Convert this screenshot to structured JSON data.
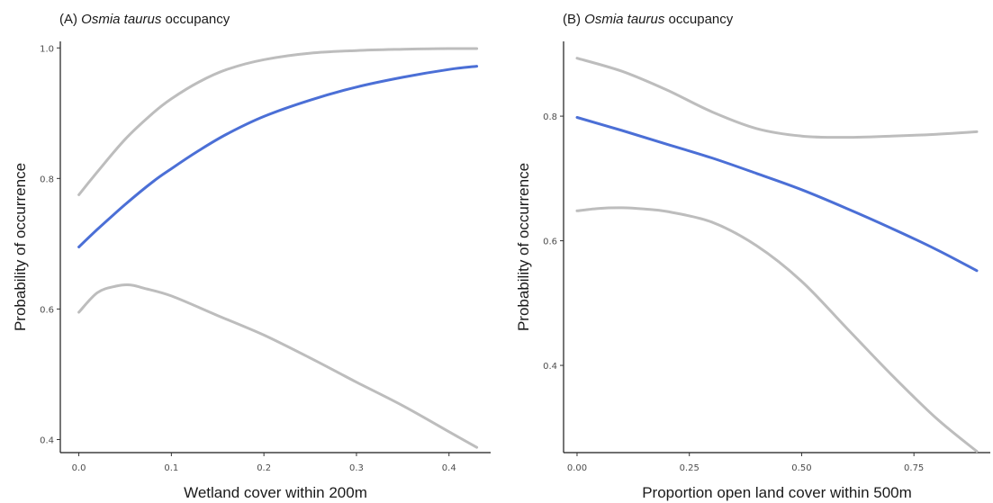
{
  "chart_data": [
    {
      "type": "line",
      "title_prefix": "(A) ",
      "title_species": "Osmia taurus",
      "title_suffix": " occupancy",
      "xlabel": "Wetland cover within 200m",
      "ylabel": "Probability of occurrence",
      "xlim": [
        -0.02,
        0.445
      ],
      "ylim": [
        0.38,
        1.01
      ],
      "xticks": [
        0.0,
        0.1,
        0.2,
        0.3,
        0.4
      ],
      "xtick_labels": [
        "0.0",
        "0.1",
        "0.2",
        "0.3",
        "0.4"
      ],
      "yticks": [
        0.4,
        0.6,
        0.8,
        1.0
      ],
      "ytick_labels": [
        "0.4",
        "0.6",
        "0.8",
        "1.0"
      ],
      "grid": false,
      "series": [
        {
          "role": "upper",
          "color": "#bdbdbd",
          "x": [
            0.0,
            0.02,
            0.05,
            0.08,
            0.1,
            0.13,
            0.16,
            0.2,
            0.25,
            0.3,
            0.35,
            0.4,
            0.43
          ],
          "y": [
            0.775,
            0.81,
            0.86,
            0.9,
            0.922,
            0.948,
            0.967,
            0.982,
            0.992,
            0.996,
            0.998,
            0.999,
            0.999
          ]
        },
        {
          "role": "fit",
          "color": "#4b6fd6",
          "x": [
            0.0,
            0.02,
            0.05,
            0.08,
            0.1,
            0.13,
            0.16,
            0.2,
            0.25,
            0.3,
            0.35,
            0.4,
            0.43
          ],
          "y": [
            0.695,
            0.722,
            0.76,
            0.795,
            0.815,
            0.843,
            0.868,
            0.895,
            0.92,
            0.94,
            0.955,
            0.967,
            0.972
          ]
        },
        {
          "role": "lower",
          "color": "#bdbdbd",
          "x": [
            0.0,
            0.02,
            0.04,
            0.055,
            0.07,
            0.1,
            0.15,
            0.2,
            0.25,
            0.3,
            0.35,
            0.4,
            0.43
          ],
          "y": [
            0.595,
            0.625,
            0.635,
            0.637,
            0.632,
            0.62,
            0.59,
            0.56,
            0.525,
            0.488,
            0.452,
            0.412,
            0.388
          ]
        }
      ]
    },
    {
      "type": "line",
      "title_prefix": "(B) ",
      "title_species": "Osmia taurus",
      "title_suffix": " occupancy",
      "xlabel": "Proportion open land cover within 500m",
      "ylabel": "Probability of occurrence",
      "xlim": [
        -0.03,
        0.92
      ],
      "ylim": [
        0.26,
        0.92
      ],
      "xticks": [
        0.0,
        0.25,
        0.5,
        0.75
      ],
      "xtick_labels": [
        "0.00",
        "0.25",
        "0.50",
        "0.75"
      ],
      "yticks": [
        0.4,
        0.6,
        0.8
      ],
      "ytick_labels": [
        "0.4",
        "0.6",
        "0.8"
      ],
      "grid": false,
      "series": [
        {
          "role": "upper",
          "color": "#bdbdbd",
          "x": [
            0.0,
            0.1,
            0.2,
            0.3,
            0.4,
            0.5,
            0.6,
            0.7,
            0.8,
            0.89
          ],
          "y": [
            0.893,
            0.872,
            0.842,
            0.807,
            0.78,
            0.768,
            0.766,
            0.768,
            0.771,
            0.775
          ]
        },
        {
          "role": "fit",
          "color": "#4b6fd6",
          "x": [
            0.0,
            0.1,
            0.2,
            0.3,
            0.4,
            0.5,
            0.6,
            0.7,
            0.8,
            0.89
          ],
          "y": [
            0.798,
            0.777,
            0.755,
            0.733,
            0.708,
            0.682,
            0.652,
            0.62,
            0.586,
            0.552
          ]
        },
        {
          "role": "lower",
          "color": "#bdbdbd",
          "x": [
            0.0,
            0.05,
            0.1,
            0.15,
            0.2,
            0.3,
            0.4,
            0.5,
            0.6,
            0.7,
            0.8,
            0.89
          ],
          "y": [
            0.648,
            0.652,
            0.653,
            0.651,
            0.647,
            0.63,
            0.592,
            0.535,
            0.46,
            0.385,
            0.315,
            0.262
          ]
        }
      ]
    }
  ]
}
